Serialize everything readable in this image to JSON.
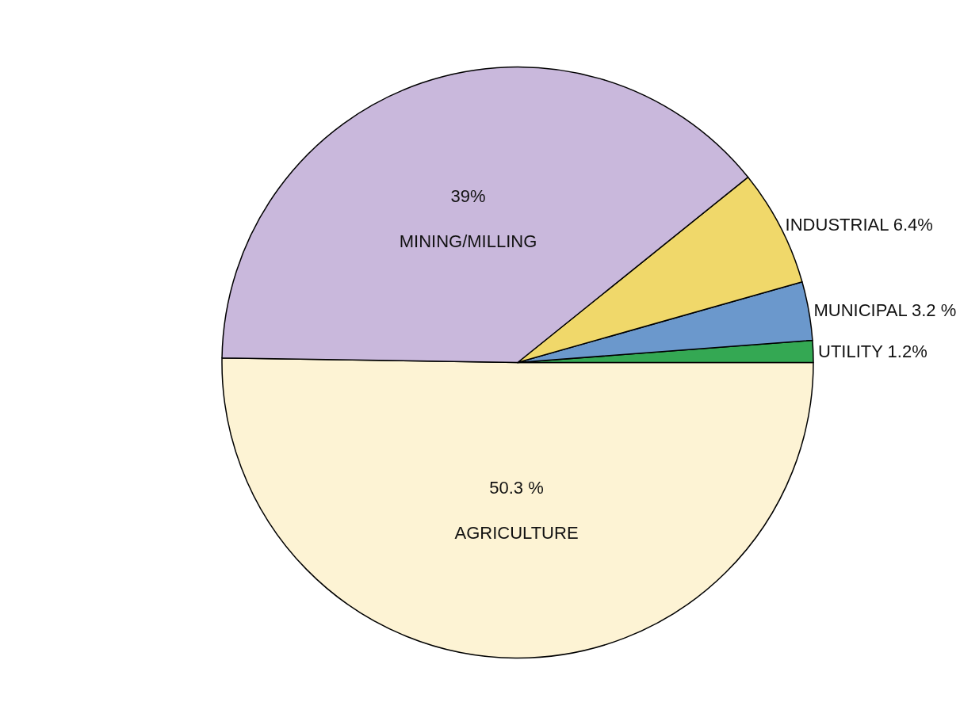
{
  "chart_data": {
    "type": "pie",
    "categories": [
      "AGRICULTURE",
      "UTILITY",
      "MUNICIPAL",
      "INDUSTRIAL",
      "MINING/MILLING"
    ],
    "values": [
      50.3,
      1.2,
      3.2,
      6.4,
      39
    ],
    "value_labels": [
      "50.3 %",
      "1.2%",
      "3.2 %",
      "6.4%",
      "39%"
    ],
    "colors": [
      "#fdf3d4",
      "#34a853",
      "#6b98cc",
      "#f0d86a",
      "#c9b8dc"
    ],
    "legend": false
  }
}
